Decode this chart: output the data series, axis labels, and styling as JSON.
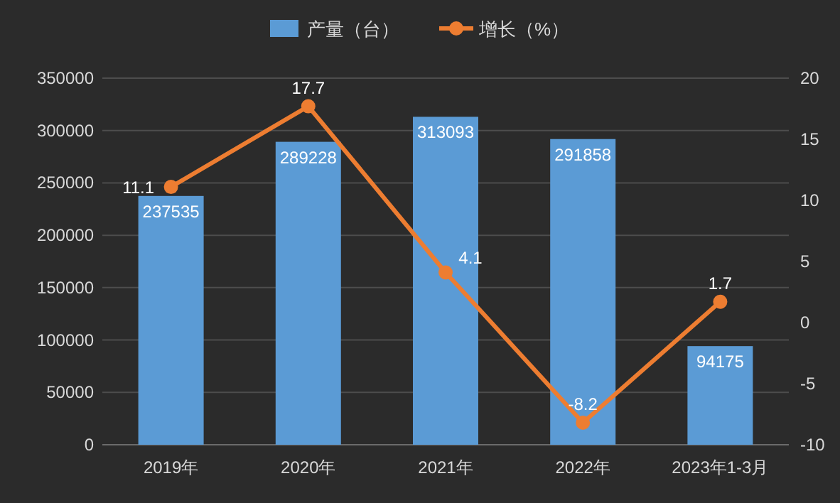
{
  "chart_data": {
    "type": "bar",
    "categories": [
      "2019年",
      "2020年",
      "2021年",
      "2022年",
      "2023年1-3月"
    ],
    "series": [
      {
        "name": "产量（台）",
        "color": "#5b9bd5",
        "values": [
          237535,
          289228,
          313093,
          291858,
          94175
        ]
      },
      {
        "name": "增长（%）",
        "type": "line",
        "axis": "y2",
        "color": "#ed7d31",
        "values": [
          11.1,
          17.7,
          4.1,
          -8.2,
          1.7
        ]
      }
    ],
    "marker": "circle",
    "ylim": [
      0,
      350000
    ],
    "yticks": [
      0,
      50000,
      100000,
      150000,
      200000,
      250000,
      300000,
      350000
    ],
    "y2lim": [
      -10,
      20
    ],
    "y2ticks": [
      -10,
      -5,
      0,
      5,
      10,
      15,
      20
    ],
    "grid": "y",
    "legend": "top",
    "data_labels": true
  }
}
